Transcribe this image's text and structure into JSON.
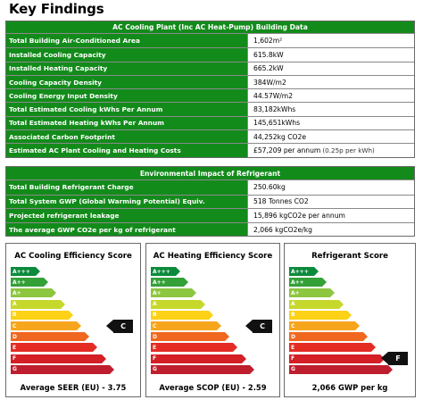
{
  "page_title": "Key Findings",
  "building_panel": {
    "title": "AC Cooling Plant (Inc AC Heat-Pump) Building Data",
    "rows": [
      {
        "label": "Total Building Air-Conditioned Area",
        "value": "1,602m²"
      },
      {
        "label": "Installed Cooling Capacity",
        "value": "615.8kW"
      },
      {
        "label": "Installed Heating Capacity",
        "value": "665.2kW"
      },
      {
        "label": "Cooling Capacity Density",
        "value": "384W/m2"
      },
      {
        "label": "Cooling Energy Input Density",
        "value": "44.57W/m2"
      },
      {
        "label": "Total Estimated Cooling kWhs Per Annum",
        "value": "83,182kWhs"
      },
      {
        "label": "Total Estimated Heating kWhs Per Annum",
        "value": "145,651kWhs"
      },
      {
        "label": "Associated Carbon Footprint",
        "value": "44,252kg CO2e"
      },
      {
        "label": "Estimated AC Plant Cooling and Heating Costs",
        "value": "£57,209 per annum",
        "note": "(0.25p per kWh)"
      }
    ]
  },
  "refrigerant_panel": {
    "title": "Environmental Impact of Refrigerant",
    "rows": [
      {
        "label": "Total Building Refrigerant Charge",
        "value": "250.60kg"
      },
      {
        "label": "Total System GWP (Global Warming Potential) Equiv.",
        "value": "518 Tonnes CO2"
      },
      {
        "label": "Projected refrigerant leakage",
        "value": "15,896 kgCO2e per annum"
      },
      {
        "label": "The average GWP CO2e per kg of refrigerant",
        "value": "2,066 kgCO2e/kg"
      }
    ]
  },
  "rating_bands": [
    {
      "label": "A+++",
      "color": "#0c8a3c"
    },
    {
      "label": "A++",
      "color": "#33a038"
    },
    {
      "label": "A+",
      "color": "#8dc63f"
    },
    {
      "label": "A",
      "color": "#c6d82b"
    },
    {
      "label": "B",
      "color": "#fcd116"
    },
    {
      "label": "C",
      "color": "#f7a51c"
    },
    {
      "label": "D",
      "color": "#f0671f"
    },
    {
      "label": "E",
      "color": "#e42c25"
    },
    {
      "label": "F",
      "color": "#d31f25"
    },
    {
      "label": "G",
      "color": "#be1e2d"
    }
  ],
  "score_cards": [
    {
      "title": "AC Cooling Efficiency Score",
      "rating": "C",
      "bottom": "Average SEER (EU) - 3.75"
    },
    {
      "title": "AC Heating Efficiency Score",
      "rating": "C",
      "bottom": "Average SCOP (EU) - 2.59"
    },
    {
      "title": "Refrigerant Score",
      "rating": "F",
      "bottom": "2,066 GWP per kg"
    }
  ]
}
